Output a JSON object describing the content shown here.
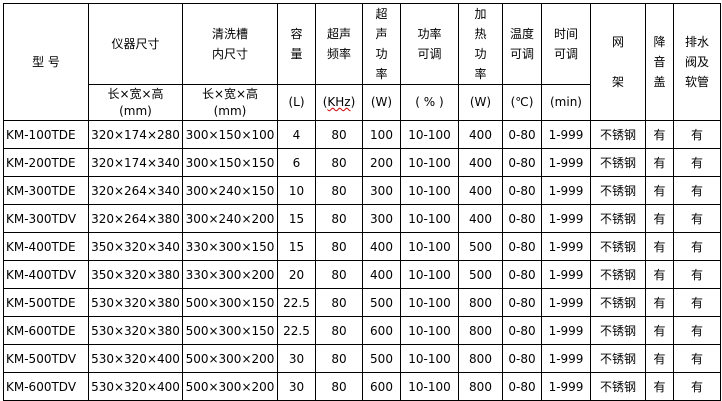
{
  "headers": {
    "model": "型 号",
    "size": "仪器尺寸",
    "tank": "清洗槽\n内尺寸",
    "capacity": "容\n量",
    "freq": "超声\n频率",
    "power": "超\n声\n功\n率",
    "adjust": "功率\n可调",
    "heat": "加\n热\n功\n率",
    "temp": "温度\n可调",
    "time": "时间\n可调",
    "basket": "网\n\n架",
    "lid": "降\n音\n盖",
    "drain": "排水\n阀及\n软管"
  },
  "units": {
    "size": "长×宽×高\n(mm)",
    "tank": "长×宽×高\n(mm)",
    "capacity": "(L)",
    "freq_open": "(",
    "freq": "KHz",
    "freq_close": ")",
    "power": "(W)",
    "adjust": "( % )",
    "heat": "(W)",
    "temp": "(℃)",
    "time": "(min)"
  },
  "rows": [
    [
      "KM-100TDE",
      "320×174×280",
      "300×150×100",
      "4",
      "80",
      "100",
      "10-100",
      "400",
      "0-80",
      "1-999",
      "不锈钢",
      "有",
      "有"
    ],
    [
      "KM-200TDE",
      "320×174×340",
      "300×150×150",
      "6",
      "80",
      "200",
      "10-100",
      "400",
      "0-80",
      "1-999",
      "不锈钢",
      "有",
      "有"
    ],
    [
      "KM-300TDE",
      "320×264×340",
      "300×240×150",
      "10",
      "80",
      "300",
      "10-100",
      "400",
      "0-80",
      "1-999",
      "不锈钢",
      "有",
      "有"
    ],
    [
      "KM-300TDV",
      "320×264×380",
      "300×240×200",
      "15",
      "80",
      "300",
      "10-100",
      "400",
      "0-80",
      "1-999",
      "不锈钢",
      "有",
      "有"
    ],
    [
      "KM-400TDE",
      "350×320×340",
      "330×300×150",
      "15",
      "80",
      "400",
      "10-100",
      "500",
      "0-80",
      "1-999",
      "不锈钢",
      "有",
      "有"
    ],
    [
      "KM-400TDV",
      "350×320×380",
      "330×300×200",
      "20",
      "80",
      "400",
      "10-100",
      "500",
      "0-80",
      "1-999",
      "不锈钢",
      "有",
      "有"
    ],
    [
      "KM-500TDE",
      "530×320×380",
      "500×300×150",
      "22.5",
      "80",
      "500",
      "10-100",
      "800",
      "0-80",
      "1-999",
      "不锈钢",
      "有",
      "有"
    ],
    [
      "KM-600TDE",
      "530×320×380",
      "500×300×150",
      "22.5",
      "80",
      "600",
      "10-100",
      "800",
      "0-80",
      "1-999",
      "不锈钢",
      "有",
      "有"
    ],
    [
      "KM-500TDV",
      "530×320×400",
      "500×300×200",
      "30",
      "80",
      "500",
      "10-100",
      "800",
      "0-80",
      "1-999",
      "不锈钢",
      "有",
      "有"
    ],
    [
      "KM-600TDV",
      "530×320×400",
      "500×300×200",
      "30",
      "80",
      "600",
      "10-100",
      "800",
      "0-80",
      "1-999",
      "不锈钢",
      "有",
      "有"
    ]
  ]
}
